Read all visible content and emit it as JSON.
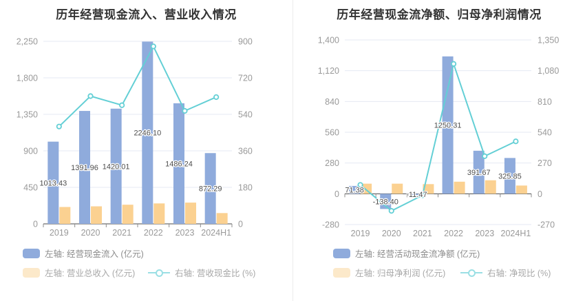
{
  "chart_data": [
    {
      "type": "bar+line",
      "title": "历年经营现金流入、营业收入情况",
      "categories": [
        "2019",
        "2020",
        "2021",
        "2022",
        "2023",
        "2024H1"
      ],
      "left_axis": {
        "min": 0,
        "max": 2250,
        "step": 450,
        "ticks": [
          "0",
          "450",
          "900",
          "1,350",
          "1,800",
          "2,250"
        ]
      },
      "right_axis": {
        "min": 0,
        "max": 900,
        "step": 180,
        "ticks": [
          "0",
          "180",
          "360",
          "540",
          "720",
          "900"
        ]
      },
      "grid": "horizontal",
      "legend_position": "bottom-left",
      "series": [
        {
          "key": "cash-inflow",
          "name": "左轴: 经营现金流入 (亿元)",
          "type": "bar",
          "axis": "left",
          "color": "#8FABDC",
          "values": [
            1013.43,
            1391.96,
            1420.01,
            2246.1,
            1486.24,
            872.29
          ],
          "value_labels": [
            "1013.43",
            "1391.96",
            "1420.01",
            "2246.10",
            "1486.24",
            "872.29"
          ]
        },
        {
          "key": "total-revenue",
          "name": "左轴: 营业总收入 (亿元)",
          "type": "bar",
          "axis": "left",
          "color": "#FBD191",
          "legend_color": "#FCE9CA",
          "values": [
            208,
            216,
            236,
            252,
            262,
            133
          ]
        },
        {
          "key": "revenue-cash-ratio",
          "name": "右轴: 营收现金比 (%)",
          "type": "line",
          "axis": "right",
          "color": "#63CFD5",
          "legend_color": "#9ADFE4",
          "values": [
            480,
            630,
            585,
            875,
            557,
            625
          ]
        }
      ]
    },
    {
      "type": "bar+line",
      "title": "历年经营现金流净额、归母净利润情况",
      "categories": [
        "2019",
        "2020",
        "2021",
        "2022",
        "2023",
        "2024H1"
      ],
      "left_axis": {
        "min": -280,
        "max": 1400,
        "step": 280,
        "ticks": [
          "-280",
          "0",
          "280",
          "560",
          "840",
          "1,120",
          "1,400"
        ]
      },
      "right_axis": {
        "min": -270,
        "max": 1350,
        "step": 270,
        "ticks": [
          "-270",
          "0",
          "270",
          "540",
          "810",
          "1,080",
          "1,350"
        ]
      },
      "grid": "horizontal",
      "legend_position": "bottom-left",
      "series": [
        {
          "key": "net-operating-cash-flow",
          "name": "左轴: 经营活动现金流净额 (亿元)",
          "type": "bar",
          "axis": "left",
          "color": "#8FABDC",
          "values": [
            71.38,
            -138.4,
            -11.47,
            1250.31,
            391.67,
            325.85
          ],
          "value_labels": [
            "71.38",
            "-138.40",
            "-11.47",
            "1250.31",
            "391.67",
            "325.85"
          ]
        },
        {
          "key": "net-profit",
          "name": "左轴: 归母净利润 (亿元)",
          "type": "bar",
          "axis": "left",
          "color": "#FBD191",
          "legend_color": "#FCE9CA",
          "values": [
            92,
            92,
            88,
            110,
            123,
            75
          ]
        },
        {
          "key": "net-cash-ratio",
          "name": "右轴: 净现比 (%)",
          "type": "line",
          "axis": "right",
          "color": "#63CFD5",
          "legend_color": "#9ADFE4",
          "values": [
            78,
            -150,
            -13,
            1140,
            330,
            460
          ]
        }
      ]
    }
  ],
  "colors": {
    "bar_blue": "#8FABDC",
    "bar_yellow": "#FBD191",
    "line_teal": "#63CFD5",
    "gridline": "#E4E9F3",
    "axis_line": "#4a4a4a",
    "axis_text": "#999999",
    "value_label_text": "#4d4d4d",
    "title_text": "#333333",
    "divider": "#ececec"
  }
}
